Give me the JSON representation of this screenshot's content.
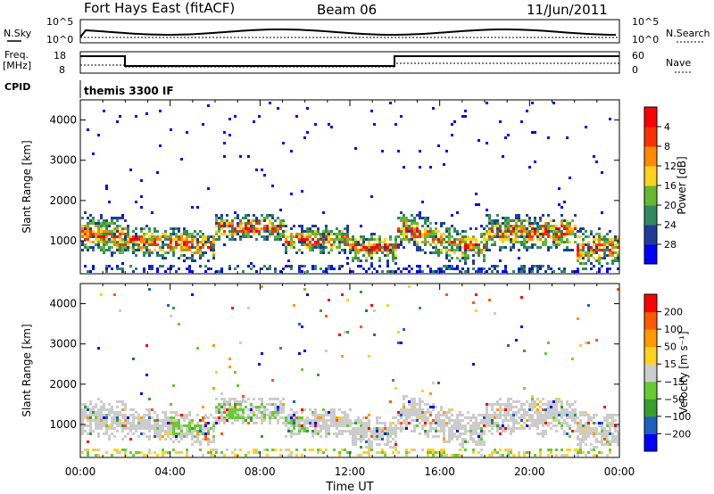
{
  "header": {
    "station": "Fort Hays East (fitACF)",
    "beam": "Beam 06",
    "date": "11/Jun/2011"
  },
  "status_panels": {
    "nsky_label": "N.Sky",
    "nsearch_label": "N.Search",
    "freq_label_top": "Freq.",
    "freq_label_unit": "[MHz]",
    "nave_label": "Nave",
    "cpid_label": "CPID",
    "cpid_value": "themis 3300 IF",
    "noise_ticks": [
      "10^5",
      "10^0"
    ],
    "freq_ticks": [
      "18",
      "8"
    ],
    "nave_ticks": [
      "60",
      "0"
    ]
  },
  "chart_data": [
    {
      "type": "heatmap",
      "title": "",
      "xlabel": "",
      "ylabel": "Slant Range [km]",
      "x_ticks": [
        "00:00",
        "04:00",
        "08:00",
        "12:00",
        "16:00",
        "20:00",
        "00:00"
      ],
      "y_ticks": [
        "1000",
        "2000",
        "3000",
        "4000"
      ],
      "x_range_hours": [
        0,
        24
      ],
      "y_range_km": [
        180,
        4500
      ],
      "colorbar": {
        "label": "Power [dB]",
        "ticks": [
          "4",
          "8",
          "12",
          "16",
          "20",
          "24",
          "28"
        ],
        "colors": [
          "#0000ff",
          "#1f3c9c",
          "#2f8a60",
          "#66b832",
          "#ffd21e",
          "#ff8a00",
          "#ff3000",
          "#ff0000"
        ]
      }
    },
    {
      "type": "heatmap",
      "title": "",
      "xlabel": "Time UT",
      "ylabel": "Slant Range [km]",
      "x_ticks": [
        "00:00",
        "04:00",
        "08:00",
        "12:00",
        "16:00",
        "20:00",
        "00:00"
      ],
      "y_ticks": [
        "1000",
        "2000",
        "3000",
        "4000"
      ],
      "x_range_hours": [
        0,
        24
      ],
      "y_range_km": [
        180,
        4500
      ],
      "colorbar": {
        "label": "Velocity [m s⁻¹]",
        "ticks": [
          "200",
          "100",
          "50",
          "15",
          "−15",
          "−50",
          "−100",
          "−200"
        ],
        "colors": [
          "#0000ff",
          "#1f5fbf",
          "#33a02c",
          "#66cc33",
          "#cccccc",
          "#ffd21e",
          "#ff9a00",
          "#ff5a00",
          "#ff0000"
        ]
      }
    }
  ]
}
